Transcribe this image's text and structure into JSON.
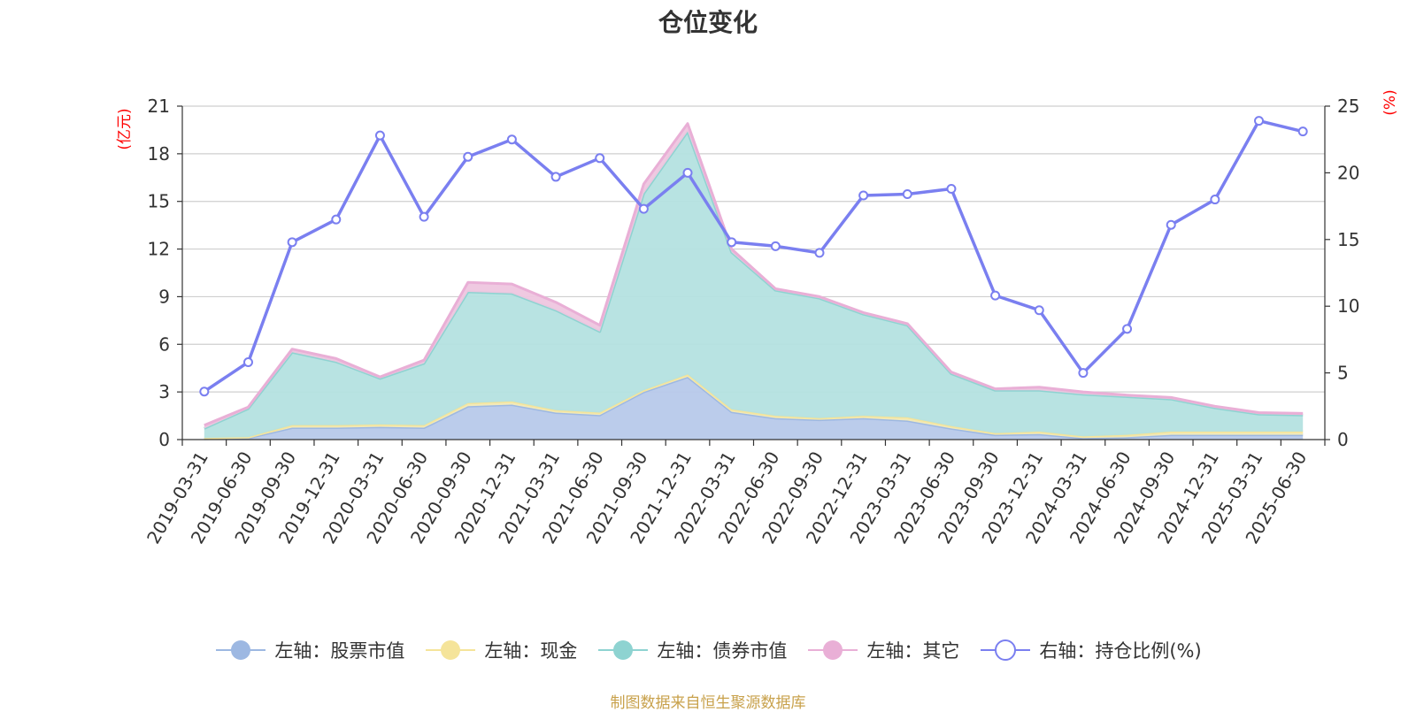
{
  "title": "仓位变化",
  "footer": "制图数据来自恒生聚源数据库",
  "chart_data": {
    "type": "area",
    "title": "仓位变化",
    "left_axis": {
      "label": "(亿元)",
      "min": 0,
      "max": 21,
      "ticks": [
        0,
        3,
        6,
        9,
        12,
        15,
        18,
        21
      ],
      "label_color": "#ff0000"
    },
    "right_axis": {
      "label": "(%)",
      "min": 0,
      "max": 25,
      "ticks": [
        0,
        5,
        10,
        15,
        20,
        25
      ],
      "label_color": "#ff0000"
    },
    "grid": true,
    "legend_position": "bottom",
    "categories": [
      "2019-03-31",
      "2019-06-30",
      "2019-09-30",
      "2019-12-31",
      "2020-03-31",
      "2020-06-30",
      "2020-09-30",
      "2020-12-31",
      "2021-03-31",
      "2021-06-30",
      "2021-09-30",
      "2021-12-31",
      "2022-03-31",
      "2022-06-30",
      "2022-09-30",
      "2022-12-31",
      "2023-03-31",
      "2023-06-30",
      "2023-09-30",
      "2023-12-31",
      "2024-03-31",
      "2024-06-30",
      "2024-09-30",
      "2024-12-31",
      "2025-03-31",
      "2025-06-30"
    ],
    "series": [
      {
        "name": "左轴：股票市值",
        "axis": "left",
        "stack": true,
        "color": "#9db8e2",
        "fill": "#b7c9ea",
        "values": [
          0.05,
          0.1,
          0.75,
          0.75,
          0.8,
          0.75,
          2.1,
          2.2,
          1.7,
          1.55,
          3.0,
          3.95,
          1.75,
          1.35,
          1.25,
          1.35,
          1.2,
          0.7,
          0.3,
          0.35,
          0.1,
          0.15,
          0.3,
          0.3,
          0.3,
          0.3
        ]
      },
      {
        "name": "左轴：现金",
        "axis": "left",
        "stack": true,
        "color": "#f5e49a",
        "fill": "#f4ebb7",
        "values": [
          0.05,
          0.05,
          0.15,
          0.15,
          0.15,
          0.15,
          0.2,
          0.2,
          0.15,
          0.15,
          0.1,
          0.15,
          0.15,
          0.15,
          0.1,
          0.15,
          0.2,
          0.15,
          0.1,
          0.15,
          0.1,
          0.15,
          0.2,
          0.2,
          0.2,
          0.2
        ]
      },
      {
        "name": "左轴：债券市值",
        "axis": "left",
        "stack": true,
        "color": "#8ed3d1",
        "fill": "#b4e1e0",
        "values": [
          0.6,
          1.8,
          4.6,
          4.0,
          2.9,
          3.9,
          7.0,
          6.8,
          6.3,
          5.1,
          12.4,
          15.3,
          9.9,
          7.9,
          7.55,
          6.4,
          5.8,
          3.3,
          2.7,
          2.6,
          2.65,
          2.4,
          2.05,
          1.5,
          1.1,
          1.05
        ]
      },
      {
        "name": "左轴：其它",
        "axis": "left",
        "stack": true,
        "color": "#e9afd6",
        "fill": "#eec6df",
        "values": [
          0.2,
          0.1,
          0.2,
          0.2,
          0.1,
          0.2,
          0.6,
          0.6,
          0.5,
          0.4,
          0.6,
          0.5,
          0.2,
          0.1,
          0.1,
          0.1,
          0.1,
          0.1,
          0.1,
          0.2,
          0.15,
          0.1,
          0.1,
          0.1,
          0.1,
          0.1
        ]
      },
      {
        "name": "右轴：持仓比例(%)",
        "axis": "right",
        "stack": false,
        "color": "#7a7ff0",
        "values": [
          3.6,
          5.8,
          14.8,
          16.5,
          22.8,
          16.7,
          21.2,
          22.5,
          19.7,
          21.1,
          17.3,
          20.0,
          14.8,
          14.5,
          14.0,
          18.3,
          18.4,
          18.8,
          10.8,
          9.7,
          5.0,
          8.3,
          16.1,
          18.0,
          23.9,
          23.1
        ]
      }
    ]
  }
}
